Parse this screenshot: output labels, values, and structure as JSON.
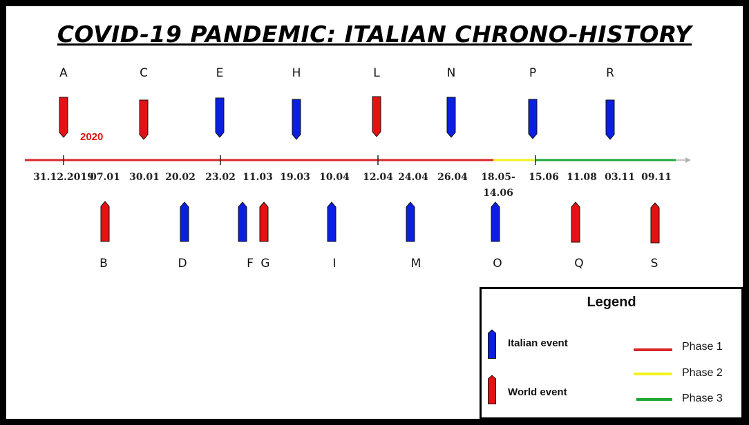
{
  "title": "COVID-19 PANDEMIC: ITALIAN CHRONO-HISTORY",
  "year_label": "2020",
  "colors": {
    "italian": "#0a1fe0",
    "world": "#e41212",
    "phase1": "#d8262a",
    "phase2": "#f4f31a",
    "phase3": "#1ea83a",
    "arrow": "#b0b0b0"
  },
  "dates": [
    "31.12.2019",
    "07.01",
    "30.01",
    "20.02",
    "23.02",
    "11.03",
    "19.03",
    "10.04",
    "12.04",
    "24.04",
    "26.04",
    "18.05-",
    "14.06",
    "15.06",
    "11.08",
    "03.11",
    "09.11"
  ],
  "events_top": [
    {
      "label": "A",
      "type": "world"
    },
    {
      "label": "C",
      "type": "world"
    },
    {
      "label": "E",
      "type": "italian"
    },
    {
      "label": "H",
      "type": "italian"
    },
    {
      "label": "L",
      "type": "world"
    },
    {
      "label": "N",
      "type": "italian"
    },
    {
      "label": "P",
      "type": "italian"
    },
    {
      "label": "R",
      "type": "italian"
    }
  ],
  "events_bottom": [
    {
      "label": "B",
      "type": "world"
    },
    {
      "label": "D",
      "type": "italian"
    },
    {
      "label": "F",
      "type": "italian"
    },
    {
      "label": "G",
      "type": "world"
    },
    {
      "label": "I",
      "type": "italian"
    },
    {
      "label": "M",
      "type": "italian"
    },
    {
      "label": "O",
      "type": "italian"
    },
    {
      "label": "Q",
      "type": "world"
    },
    {
      "label": "S",
      "type": "world"
    }
  ],
  "legend": {
    "title": "Legend",
    "italian_label": "Italian event",
    "world_label": "World event",
    "phase1_label": "Phase 1",
    "phase2_label": "Phase 2",
    "phase3_label": "Phase 3"
  }
}
